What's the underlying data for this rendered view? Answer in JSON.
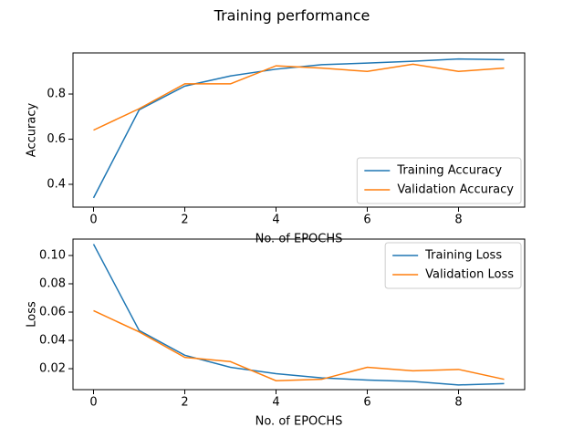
{
  "title": "Training performance",
  "chart_data": [
    {
      "type": "line",
      "x": [
        0,
        1,
        2,
        3,
        4,
        5,
        6,
        7,
        8,
        9
      ],
      "xlim": [
        -0.45,
        9.45
      ],
      "xticks": [
        0,
        2,
        4,
        6,
        8
      ],
      "ylim": [
        0.299,
        0.982
      ],
      "yticks": [
        0.4,
        0.6,
        0.8
      ],
      "xlabel": "No. of EPOCHS",
      "ylabel": "Accuracy",
      "legend": "lower right",
      "series": [
        {
          "name": "Training Accuracy",
          "color": "#1f77b4",
          "values": [
            0.34,
            0.73,
            0.835,
            0.88,
            0.91,
            0.93,
            0.937,
            0.945,
            0.955,
            0.952
          ]
        },
        {
          "name": "Validation Accuracy",
          "color": "#ff7f0e",
          "values": [
            0.64,
            0.735,
            0.845,
            0.845,
            0.925,
            0.915,
            0.9,
            0.932,
            0.9,
            0.915
          ]
        }
      ]
    },
    {
      "type": "line",
      "x": [
        0,
        1,
        2,
        3,
        4,
        5,
        6,
        7,
        8,
        9
      ],
      "xlim": [
        -0.45,
        9.45
      ],
      "xticks": [
        0,
        2,
        4,
        6,
        8
      ],
      "ylim": [
        0.0052,
        0.1116
      ],
      "yticks": [
        {
          "value": 0.02,
          "label": "0.02"
        },
        {
          "value": 0.04,
          "label": "0.04"
        },
        {
          "value": 0.06,
          "label": "0.06"
        },
        {
          "value": 0.08,
          "label": "0.08"
        },
        {
          "value": 0.1,
          "label": "0.10"
        }
      ],
      "xlabel": "No. of EPOCHS",
      "ylabel": "Loss",
      "legend": "upper right",
      "series": [
        {
          "name": "Training Loss",
          "color": "#1f77b4",
          "values": [
            0.108,
            0.047,
            0.0295,
            0.021,
            0.0165,
            0.0135,
            0.012,
            0.011,
            0.0085,
            0.0095
          ]
        },
        {
          "name": "Validation Loss",
          "color": "#ff7f0e",
          "values": [
            0.061,
            0.046,
            0.028,
            0.025,
            0.0115,
            0.0125,
            0.021,
            0.0185,
            0.0195,
            0.0125
          ]
        }
      ]
    }
  ]
}
